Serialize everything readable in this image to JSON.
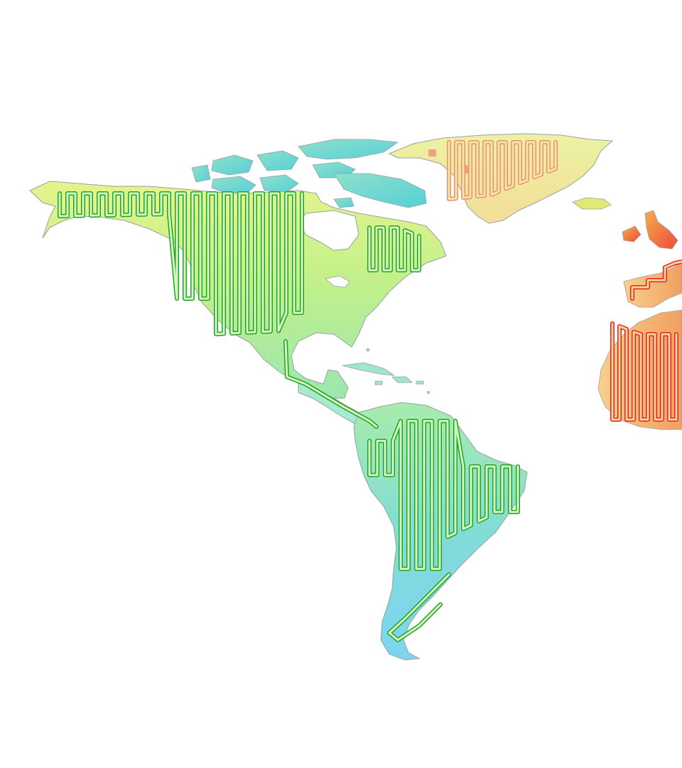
{
  "map": {
    "background": "#ffffff",
    "land_outline": "#9aa0a0",
    "path_styles": {
      "americas": {
        "stroke": "#1fa51f",
        "inner": "#d8f5c8"
      },
      "greenland": {
        "stroke": "#f08c78",
        "inner": "#f6e6a0"
      },
      "europe_africa": {
        "stroke": "#e8231c",
        "inner": "#fbd3a0"
      }
    },
    "gradients": {
      "north_america": [
        "#e4f48c",
        "#b9f08e",
        "#8fe2b4"
      ],
      "arctic": [
        "#7fd9d9",
        "#9be2c8"
      ],
      "greenland": [
        "#e8f2a0",
        "#f6e6a0"
      ],
      "south_america": [
        "#a4eab0",
        "#7cdcdc",
        "#7fd4ee"
      ],
      "europe": [
        "#f4a64a",
        "#ee4a3a"
      ],
      "africa": [
        "#f6c98a",
        "#f09a5a"
      ]
    },
    "regions": [
      "north-america",
      "central-america",
      "caribbean",
      "south-america",
      "canadian-arctic-islands",
      "greenland",
      "iceland",
      "british-isles",
      "iberia",
      "west-africa"
    ]
  }
}
